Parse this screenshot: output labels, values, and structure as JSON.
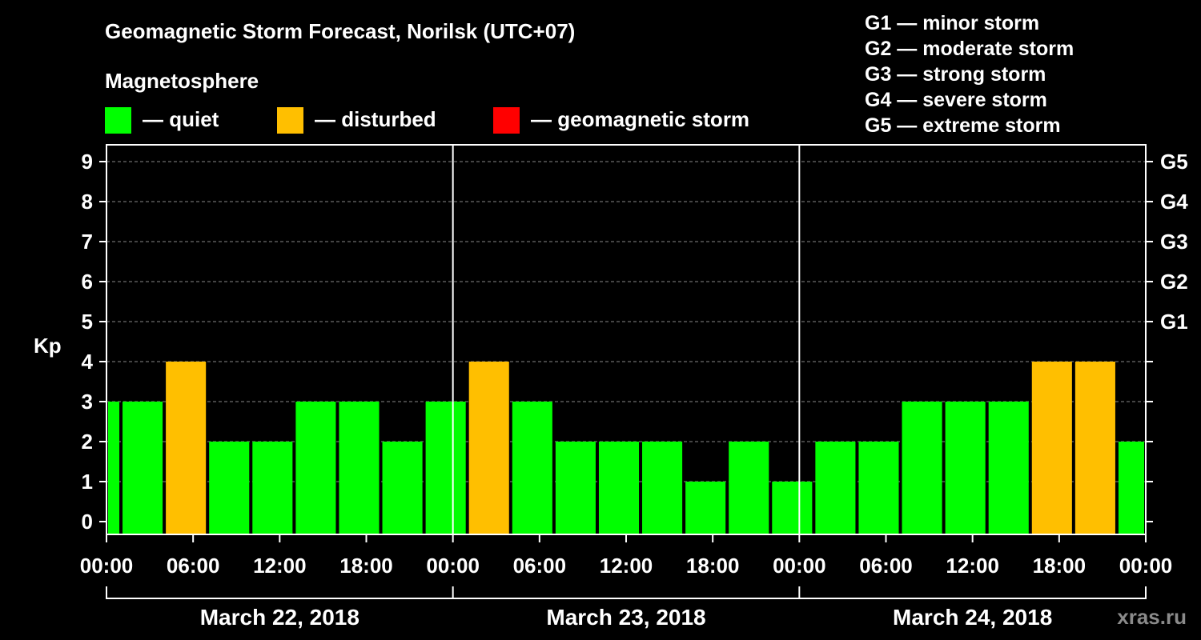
{
  "chart_data": {
    "type": "bar",
    "title": "Geomagnetic Storm Forecast, Norilsk (UTC+07)",
    "subtitle": "Magnetosphere",
    "ylabel": "Kp",
    "ylim": [
      0,
      9
    ],
    "yticks": [
      "0",
      "1",
      "2",
      "3",
      "4",
      "5",
      "6",
      "7",
      "8",
      "9"
    ],
    "right_axis_labels": [
      {
        "kp": 5,
        "label": "G1"
      },
      {
        "kp": 6,
        "label": "G2"
      },
      {
        "kp": 7,
        "label": "G3"
      },
      {
        "kp": 8,
        "label": "G4"
      },
      {
        "kp": 9,
        "label": "G5"
      }
    ],
    "x_range_hours": [
      0,
      72
    ],
    "xtick_labels": [
      "00:00",
      "06:00",
      "12:00",
      "18:00",
      "00:00",
      "06:00",
      "12:00",
      "18:00",
      "00:00",
      "06:00",
      "12:00",
      "18:00",
      "00:00"
    ],
    "dates": [
      "March 22, 2018",
      "March 23, 2018",
      "March 24, 2018"
    ],
    "bars": [
      {
        "start": 0,
        "end": 1,
        "kp": 3,
        "status": "quiet"
      },
      {
        "start": 1,
        "end": 4,
        "kp": 3,
        "status": "quiet"
      },
      {
        "start": 4,
        "end": 7,
        "kp": 4,
        "status": "disturbed"
      },
      {
        "start": 7,
        "end": 10,
        "kp": 2,
        "status": "quiet"
      },
      {
        "start": 10,
        "end": 13,
        "kp": 2,
        "status": "quiet"
      },
      {
        "start": 13,
        "end": 16,
        "kp": 3,
        "status": "quiet"
      },
      {
        "start": 16,
        "end": 19,
        "kp": 3,
        "status": "quiet"
      },
      {
        "start": 19,
        "end": 22,
        "kp": 2,
        "status": "quiet"
      },
      {
        "start": 22,
        "end": 25,
        "kp": 3,
        "status": "quiet"
      },
      {
        "start": 25,
        "end": 28,
        "kp": 4,
        "status": "disturbed"
      },
      {
        "start": 28,
        "end": 31,
        "kp": 3,
        "status": "quiet"
      },
      {
        "start": 31,
        "end": 34,
        "kp": 2,
        "status": "quiet"
      },
      {
        "start": 34,
        "end": 37,
        "kp": 2,
        "status": "quiet"
      },
      {
        "start": 37,
        "end": 40,
        "kp": 2,
        "status": "quiet"
      },
      {
        "start": 40,
        "end": 43,
        "kp": 1,
        "status": "quiet"
      },
      {
        "start": 43,
        "end": 46,
        "kp": 2,
        "status": "quiet"
      },
      {
        "start": 46,
        "end": 49,
        "kp": 1,
        "status": "quiet"
      },
      {
        "start": 49,
        "end": 52,
        "kp": 2,
        "status": "quiet"
      },
      {
        "start": 52,
        "end": 55,
        "kp": 2,
        "status": "quiet"
      },
      {
        "start": 55,
        "end": 58,
        "kp": 3,
        "status": "quiet"
      },
      {
        "start": 58,
        "end": 61,
        "kp": 3,
        "status": "quiet"
      },
      {
        "start": 61,
        "end": 64,
        "kp": 3,
        "status": "quiet"
      },
      {
        "start": 64,
        "end": 67,
        "kp": 4,
        "status": "disturbed"
      },
      {
        "start": 67,
        "end": 70,
        "kp": 4,
        "status": "disturbed"
      },
      {
        "start": 70,
        "end": 72,
        "kp": 2,
        "status": "quiet"
      }
    ],
    "grid": true
  },
  "legend": {
    "quiet": {
      "label": "— quiet",
      "color": "#00ff00"
    },
    "disturbed": {
      "label": "— disturbed",
      "color": "#ffbf00"
    },
    "storm": {
      "label": "— geomagnetic storm",
      "color": "#ff0000"
    }
  },
  "storm_levels": [
    "G1 — minor storm",
    "G2 — moderate storm",
    "G3 — strong storm",
    "G4 — severe storm",
    "G5 — extreme storm"
  ],
  "watermark": "xras.ru"
}
